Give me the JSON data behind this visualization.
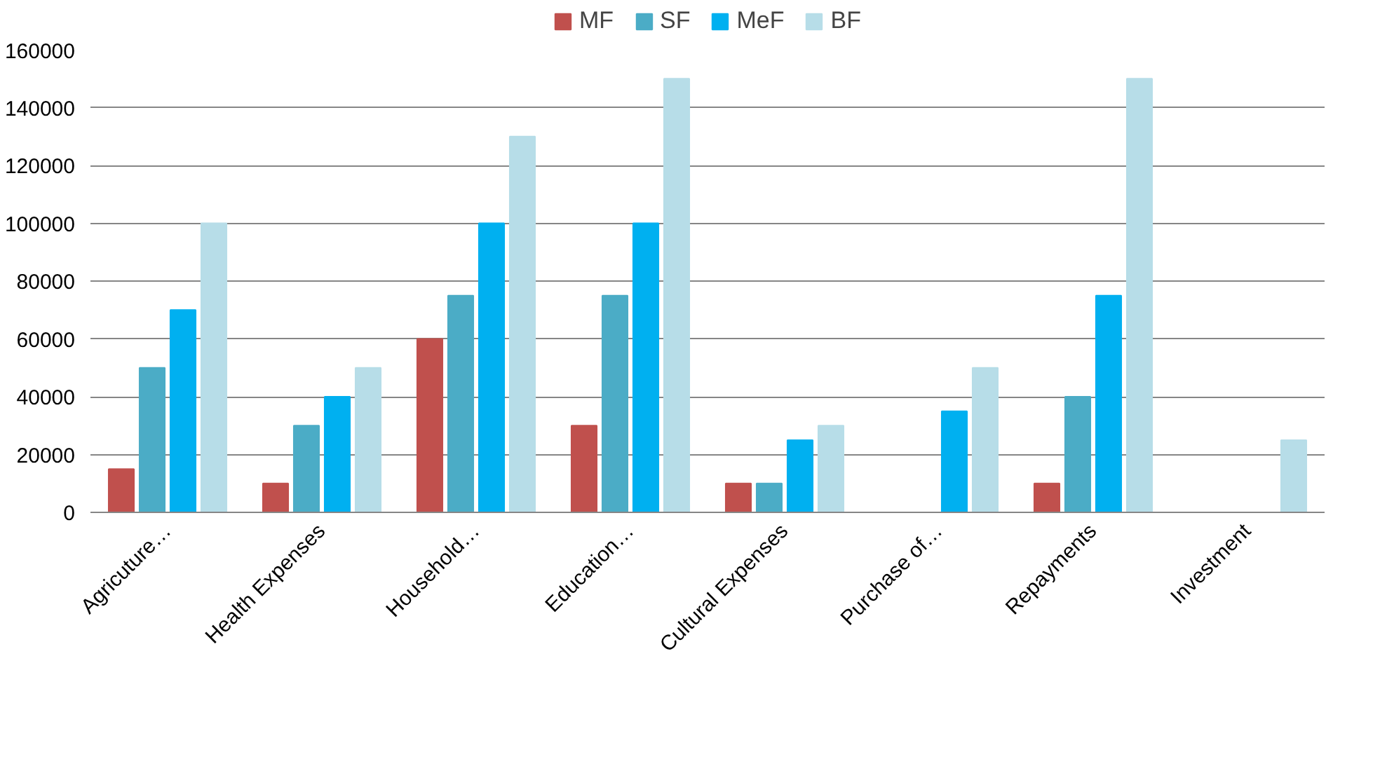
{
  "chart_data": {
    "type": "bar",
    "categories": [
      "Agricuture…",
      "Health Expenses",
      "Household…",
      "Education…",
      "Cultural Expenses",
      "Purchase of…",
      "Repayments",
      "Investment"
    ],
    "series": [
      {
        "name": "MF",
        "color": "#c0504d",
        "values": [
          15000,
          10000,
          60000,
          30000,
          10000,
          null,
          10000,
          null
        ]
      },
      {
        "name": "SF",
        "color": "#4bacc6",
        "values": [
          50000,
          30000,
          75000,
          75000,
          10000,
          null,
          40000,
          null
        ]
      },
      {
        "name": "MeF",
        "color": "#00b0f0",
        "values": [
          70000,
          40000,
          100000,
          100000,
          25000,
          35000,
          75000,
          null
        ]
      },
      {
        "name": "BF",
        "color": "#b7dde8",
        "values": [
          100000,
          50000,
          130000,
          150000,
          30000,
          50000,
          150000,
          25000
        ]
      }
    ],
    "ylim": [
      0,
      160000
    ],
    "yticks": [
      0,
      20000,
      40000,
      60000,
      80000,
      100000,
      120000,
      140000,
      160000
    ],
    "grid": "y",
    "legend": "top"
  }
}
